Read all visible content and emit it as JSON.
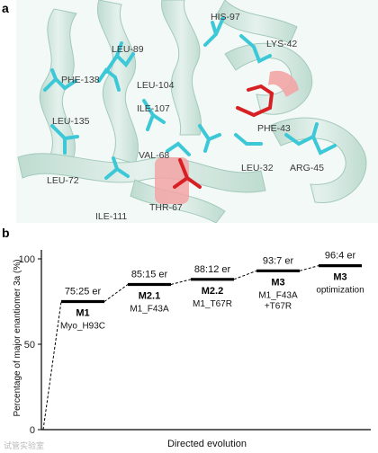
{
  "panel_a": {
    "letter": "a",
    "residues": [
      "HIS-97",
      "LEU-89",
      "LYS-42",
      "PHE-138",
      "LEU-104",
      "ILE-107",
      "LEU-135",
      "PHE-43",
      "VAL-68",
      "LEU-32",
      "ARG-45",
      "LEU-72",
      "ILE-111",
      "THR-67"
    ],
    "colors": {
      "ribbon": "#cfe5dc",
      "ribbon_dark": "#a9cdc0",
      "stick_cyan": "#3cc8d6",
      "stick_red": "#d62024",
      "highlight_red": "#f2a5a5"
    }
  },
  "panel_b": {
    "letter": "b",
    "ylabel": "Percentage of major enantiomer 3a (%)",
    "xlabel": "Directed evolution",
    "watermark": "试管实验室"
  },
  "chart_data": {
    "type": "line",
    "ylim": [
      0,
      100
    ],
    "yticks": [
      "0",
      "50",
      "100"
    ],
    "start_value": 0,
    "steps": [
      {
        "er": "75:25 er",
        "name": "M1",
        "desc": [
          "Myo_H93C"
        ],
        "value": 75
      },
      {
        "er": "85:15 er",
        "name": "M2.1",
        "desc": [
          "M1_F43A"
        ],
        "value": 85
      },
      {
        "er": "88:12 er",
        "name": "M2.2",
        "desc": [
          "M1_T67R"
        ],
        "value": 88
      },
      {
        "er": "93:7 er",
        "name": "M3",
        "desc": [
          "M1_F43A",
          "+T67R"
        ],
        "value": 93
      },
      {
        "er": "96:4 er",
        "name": "M3",
        "desc": [
          "optimization"
        ],
        "value": 96
      }
    ],
    "grid": false
  }
}
